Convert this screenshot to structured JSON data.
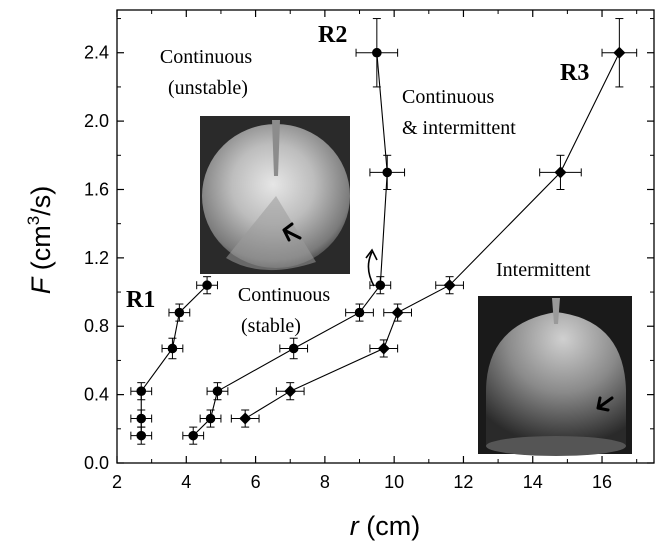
{
  "chart_data": {
    "type": "scatter",
    "xlabel": {
      "symbol": "r",
      "unit": " (cm)"
    },
    "ylabel": {
      "symbol": "F",
      "unit_open": " (cm",
      "unit_sup": "3",
      "unit_close": "/s)"
    },
    "xlim": [
      2,
      17.5
    ],
    "ylim": [
      0,
      2.65
    ],
    "xticks": [
      "2",
      "4",
      "6",
      "8",
      "10",
      "12",
      "14",
      "16"
    ],
    "yticks": [
      "0.0",
      "0.4",
      "0.8",
      "1.2",
      "1.6",
      "2.0",
      "2.4"
    ],
    "grid": false,
    "series": [
      {
        "name": "R1",
        "marker": "circle",
        "x": [
          2.7,
          2.7,
          2.7,
          3.6,
          3.8,
          4.6
        ],
        "y": [
          0.16,
          0.26,
          0.42,
          0.67,
          0.88,
          1.04
        ],
        "xerr": [
          0.3,
          0.3,
          0.3,
          0.3,
          0.3,
          0.3
        ],
        "yerr": [
          0.05,
          0.05,
          0.05,
          0.06,
          0.05,
          0.05
        ]
      },
      {
        "name": "R2",
        "marker": "circle",
        "x": [
          4.2,
          4.7,
          4.9,
          7.1,
          9.0,
          9.6,
          9.8,
          9.5
        ],
        "y": [
          0.16,
          0.26,
          0.42,
          0.67,
          0.88,
          1.04,
          1.7,
          2.4
        ],
        "xerr": [
          0.3,
          0.3,
          0.3,
          0.4,
          0.4,
          0.3,
          0.5,
          0.6
        ],
        "yerr": [
          0.05,
          0.05,
          0.05,
          0.06,
          0.05,
          0.05,
          0.1,
          0.2
        ]
      },
      {
        "name": "R3",
        "marker": "diamond",
        "x": [
          5.7,
          7.0,
          9.7,
          10.1,
          11.6,
          14.8,
          16.5
        ],
        "y": [
          0.26,
          0.42,
          0.67,
          0.88,
          1.04,
          1.7,
          2.4
        ],
        "xerr": [
          0.4,
          0.4,
          0.4,
          0.4,
          0.4,
          0.6,
          0.5
        ],
        "yerr": [
          0.05,
          0.05,
          0.05,
          0.05,
          0.05,
          0.1,
          0.2
        ]
      }
    ],
    "annotations": [
      {
        "lines": [
          "Continuous",
          "(unstable)"
        ]
      },
      {
        "lines": [
          "Continuous",
          "& intermittent"
        ]
      },
      {
        "lines": [
          "Continuous",
          "(stable)"
        ]
      },
      {
        "lines": [
          "Intermittent"
        ]
      }
    ]
  }
}
